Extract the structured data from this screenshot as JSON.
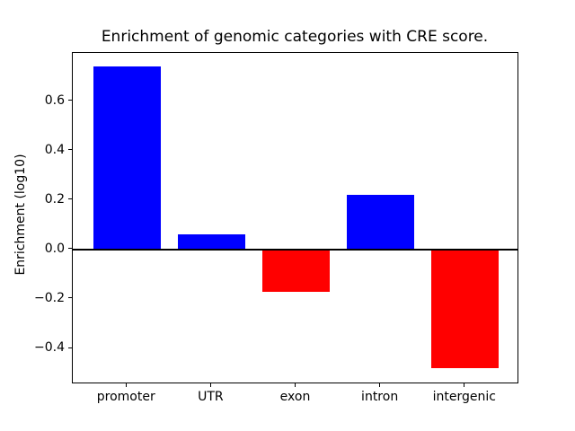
{
  "chart_data": {
    "type": "bar",
    "title": "Enrichment of genomic categories with CRE score.",
    "ylabel": "Enrichment (log10)",
    "xlabel": "",
    "categories": [
      "promoter",
      "UTR",
      "exon",
      "intron",
      "intergenic"
    ],
    "values": [
      0.74,
      0.06,
      -0.17,
      0.22,
      -0.48
    ],
    "bar_colors": [
      "#0000ff",
      "#0000ff",
      "#ff0000",
      "#0000ff",
      "#ff0000"
    ],
    "positive_color": "#0000ff",
    "negative_color": "#ff0000",
    "bar_width": 0.8,
    "ylim": [
      -0.545,
      0.795
    ],
    "xlim": [
      -0.64,
      4.64
    ],
    "ytick_values": [
      0.6,
      0.4,
      0.2,
      0.0,
      -0.2,
      -0.4
    ],
    "ytick_labels": [
      "0.6",
      "0.4",
      "0.2",
      "0.0",
      "−0.2",
      "−0.4"
    ],
    "zero_line": true,
    "grid": false,
    "legend": null
  }
}
